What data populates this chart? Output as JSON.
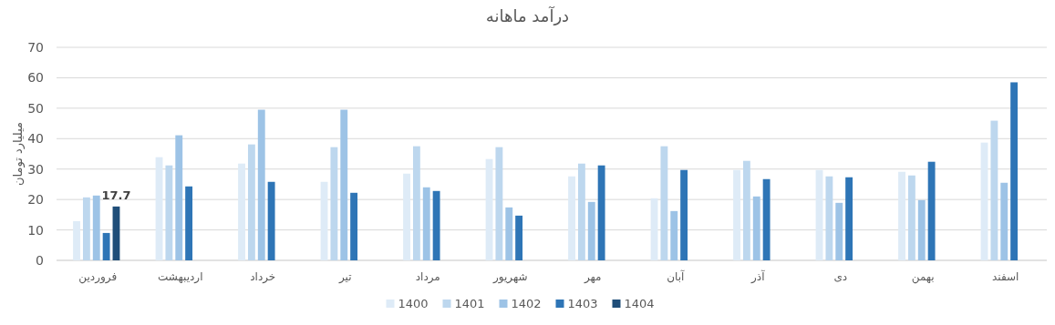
{
  "chart_data": {
    "type": "bar",
    "title": "درآمد ماهانه",
    "ylabel": "میلیارد تومان",
    "categories": [
      "فروردین",
      "اردیبهشت",
      "خرداد",
      "تیر",
      "مرداد",
      "شهریور",
      "مهر",
      "آبان",
      "آذر",
      "دی",
      "بهمن",
      "اسفند"
    ],
    "series": [
      {
        "name": "1400",
        "color": "#deebf7",
        "values": [
          12.9,
          33.9,
          31.8,
          25.8,
          28.5,
          33.3,
          27.6,
          20.4,
          29.7,
          29.7,
          29.1,
          38.7
        ]
      },
      {
        "name": "1401",
        "color": "#bdd7ee",
        "values": [
          20.7,
          31.2,
          38.1,
          37.2,
          37.5,
          37.2,
          31.8,
          37.5,
          32.7,
          27.6,
          27.9,
          45.9
        ]
      },
      {
        "name": "1402",
        "color": "#9dc3e6",
        "values": [
          21.3,
          41.1,
          49.5,
          49.5,
          24.0,
          17.4,
          19.2,
          16.2,
          21.0,
          18.9,
          19.8,
          25.5
        ]
      },
      {
        "name": "1403",
        "color": "#2e75b6",
        "values": [
          9.0,
          24.3,
          25.8,
          22.2,
          22.8,
          14.7,
          31.2,
          29.7,
          26.7,
          27.3,
          32.4,
          58.5
        ]
      },
      {
        "name": "1404",
        "color": "#1f4e79",
        "values": [
          17.7,
          null,
          null,
          null,
          null,
          null,
          null,
          null,
          null,
          null,
          null,
          null
        ],
        "value_labels": [
          "17.7",
          null,
          null,
          null,
          null,
          null,
          null,
          null,
          null,
          null,
          null,
          null
        ]
      }
    ],
    "ylim": [
      0,
      70
    ],
    "yticks": [
      0,
      10,
      20,
      30,
      40,
      50,
      60,
      70
    ],
    "grid": "y",
    "legend": "bottom"
  }
}
